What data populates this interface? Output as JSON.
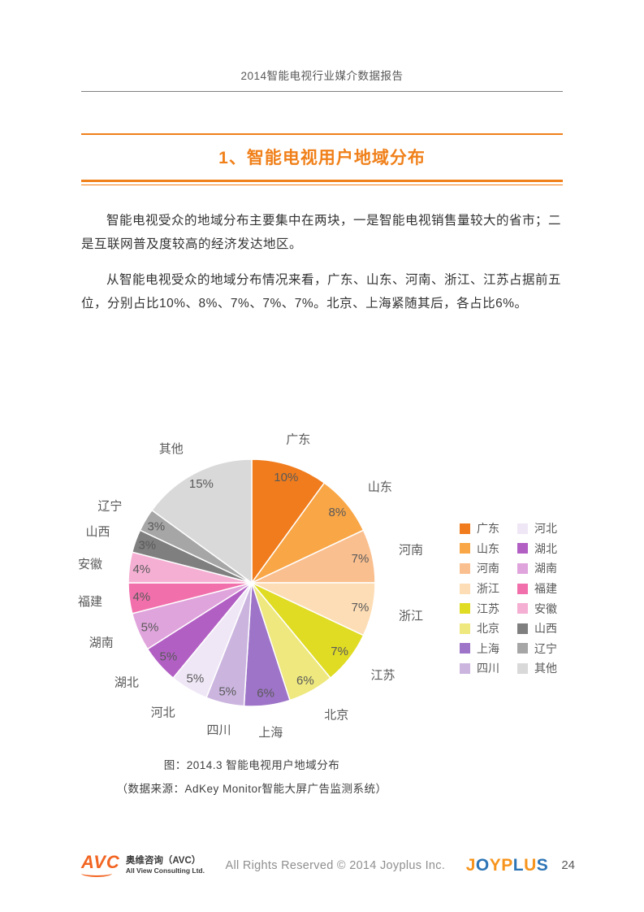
{
  "page": {
    "header": "2014智能电视行业媒介数据报告"
  },
  "section": {
    "title": "1、智能电视用户地域分布"
  },
  "paragraphs": [
    "智能电视受众的地域分布主要集中在两块，一是智能电视销售量较大的省市；二是互联网普及度较高的经济发达地区。",
    "从智能电视受众的地域分布情况来看，广东、山东、河南、浙江、江苏占据前五位，分别占比10%、8%、7%、7%、7%。北京、上海紧随其后，各占比6%。"
  ],
  "chart_data": {
    "type": "pie",
    "title": "图：2014.3 智能电视用户地域分布",
    "source": "（数据来源：AdKey Monitor智能大屏广告监测系统）",
    "unit": "%",
    "start_angle": "top",
    "direction": "clockwise",
    "categories": [
      "广东",
      "山东",
      "河南",
      "浙江",
      "江苏",
      "北京",
      "上海",
      "四川",
      "河北",
      "湖北",
      "湖南",
      "福建",
      "安徽",
      "山西",
      "辽宁",
      "其他"
    ],
    "values": [
      10,
      8,
      7,
      7,
      7,
      6,
      6,
      5,
      5,
      5,
      5,
      4,
      4,
      3,
      3,
      15
    ],
    "colors": [
      "#F07C1D",
      "#F9A646",
      "#FABF8F",
      "#FDDDB5",
      "#E0DB23",
      "#EEE87E",
      "#9E74C8",
      "#CBB5DF",
      "#EFE7F6",
      "#B25FC4",
      "#E0A4DC",
      "#F170AC",
      "#F5AFD3",
      "#7F7F7F",
      "#A6A6A6",
      "#D9D9D9"
    ],
    "legend_position": "right",
    "legend_columns": [
      [
        "广东",
        "山东",
        "河南",
        "浙江",
        "江苏",
        "北京",
        "上海",
        "四川"
      ],
      [
        "河北",
        "湖北",
        "湖南",
        "福建",
        "安徽",
        "山西",
        "辽宁",
        "其他"
      ]
    ]
  },
  "footer": {
    "avc_mark": "AVC",
    "avc_name_cn": "奥维咨询（AVC）",
    "avc_name_en": "All View Consulting Ltd.",
    "copyright": "All Rights Reserved  ©  2014 Joyplus Inc.",
    "joyplus_letters": [
      "J",
      "O",
      "Y",
      "P",
      "L",
      "U",
      "S"
    ],
    "joyplus_colors": [
      "#F7941D",
      "#2E75B6",
      "#F7941D",
      "#F7941D",
      "#2E75B6",
      "#F7941D",
      "#2E75B6"
    ],
    "page_number": "24"
  }
}
